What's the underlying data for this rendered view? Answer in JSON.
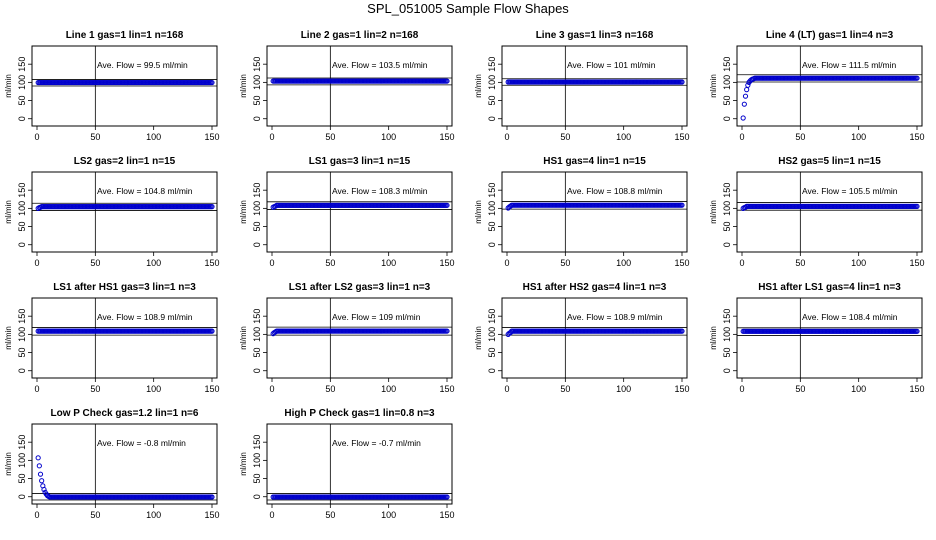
{
  "page": {
    "title": "SPL_051005  Sample Flow Shapes"
  },
  "chart_data": [
    {
      "type": "scatter",
      "title": "Line 1 gas=1 lin=1 n=168",
      "ylabel": "ml/min",
      "annotation": "Ave. Flow =  99.5  ml/min",
      "xlim": [
        0,
        150
      ],
      "ylim": [
        -20,
        200
      ],
      "xticks": [
        0,
        50,
        100,
        150
      ],
      "yticks": [
        0,
        50,
        100,
        150
      ],
      "hlines": [
        90,
        108
      ],
      "vline": 50,
      "marker_color": "#0000cc",
      "start": [],
      "plateau": 99.5
    },
    {
      "type": "scatter",
      "title": "Line 2 gas=1 lin=2 n=168",
      "ylabel": "ml/min",
      "annotation": "Ave. Flow =  103.5  ml/min",
      "xlim": [
        0,
        150
      ],
      "ylim": [
        -20,
        200
      ],
      "xticks": [
        0,
        50,
        100,
        150
      ],
      "yticks": [
        0,
        50,
        100,
        150
      ],
      "hlines": [
        93,
        112
      ],
      "vline": 50,
      "marker_color": "#0000cc",
      "start": [],
      "plateau": 103.5
    },
    {
      "type": "scatter",
      "title": "Line 3 gas=1 lin=3 n=168",
      "ylabel": "ml/min",
      "annotation": "Ave. Flow =  101  ml/min",
      "xlim": [
        0,
        150
      ],
      "ylim": [
        -20,
        200
      ],
      "xticks": [
        0,
        50,
        100,
        150
      ],
      "yticks": [
        0,
        50,
        100,
        150
      ],
      "hlines": [
        92,
        110
      ],
      "vline": 50,
      "marker_color": "#0000cc",
      "start": [],
      "plateau": 101
    },
    {
      "type": "scatter",
      "title": "Line 4 (LT) gas=1 lin=4 n=3",
      "ylabel": "ml/min",
      "annotation": "Ave. Flow =  111.5  ml/min",
      "xlim": [
        0,
        150
      ],
      "ylim": [
        -20,
        200
      ],
      "xticks": [
        0,
        50,
        100,
        150
      ],
      "yticks": [
        0,
        50,
        100,
        150
      ],
      "hlines": [
        101,
        121
      ],
      "vline": 50,
      "marker_color": "#0000cc",
      "start": [
        [
          1,
          2
        ],
        [
          2,
          40
        ],
        [
          3,
          62
        ],
        [
          4,
          80
        ],
        [
          5,
          92
        ],
        [
          6,
          100
        ],
        [
          7,
          104
        ],
        [
          8,
          107
        ],
        [
          9,
          109
        ],
        [
          10,
          110
        ]
      ],
      "plateau": 111.5
    },
    {
      "type": "scatter",
      "title": "LS2 gas=2 lin=1 n=15",
      "ylabel": "ml/min",
      "annotation": "Ave. Flow =  104.8  ml/min",
      "xlim": [
        0,
        150
      ],
      "ylim": [
        -20,
        200
      ],
      "xticks": [
        0,
        50,
        100,
        150
      ],
      "yticks": [
        0,
        50,
        100,
        150
      ],
      "hlines": [
        94,
        114
      ],
      "vline": 50,
      "marker_color": "#0000cc",
      "start": [
        [
          1,
          100
        ],
        [
          2,
          102
        ],
        [
          3,
          103
        ]
      ],
      "plateau": 104.8
    },
    {
      "type": "scatter",
      "title": "LS1 gas=3 lin=1 n=15",
      "ylabel": "ml/min",
      "annotation": "Ave. Flow =  108.3  ml/min",
      "xlim": [
        0,
        150
      ],
      "ylim": [
        -20,
        200
      ],
      "xticks": [
        0,
        50,
        100,
        150
      ],
      "yticks": [
        0,
        50,
        100,
        150
      ],
      "hlines": [
        97,
        118
      ],
      "vline": 50,
      "marker_color": "#0000cc",
      "start": [
        [
          1,
          103
        ],
        [
          2,
          105
        ],
        [
          3,
          106
        ]
      ],
      "plateau": 108.3
    },
    {
      "type": "scatter",
      "title": "HS1 gas=4 lin=1 n=15",
      "ylabel": "ml/min",
      "annotation": "Ave. Flow =  108.8  ml/min",
      "xlim": [
        0,
        150
      ],
      "ylim": [
        -20,
        200
      ],
      "xticks": [
        0,
        50,
        100,
        150
      ],
      "yticks": [
        0,
        50,
        100,
        150
      ],
      "hlines": [
        98,
        119
      ],
      "vline": 50,
      "marker_color": "#0000cc",
      "start": [
        [
          1,
          101
        ],
        [
          2,
          104
        ],
        [
          3,
          106
        ]
      ],
      "plateau": 108.8
    },
    {
      "type": "scatter",
      "title": "HS2 gas=5 lin=1 n=15",
      "ylabel": "ml/min",
      "annotation": "Ave. Flow =  105.5  ml/min",
      "xlim": [
        0,
        150
      ],
      "ylim": [
        -20,
        200
      ],
      "xticks": [
        0,
        50,
        100,
        150
      ],
      "yticks": [
        0,
        50,
        100,
        150
      ],
      "hlines": [
        95,
        116
      ],
      "vline": 50,
      "marker_color": "#0000cc",
      "start": [
        [
          1,
          100
        ],
        [
          2,
          102
        ],
        [
          3,
          103
        ]
      ],
      "plateau": 105.5
    },
    {
      "type": "scatter",
      "title": "LS1 after HS1 gas=3 lin=1 n=3",
      "ylabel": "ml/min",
      "annotation": "Ave. Flow =  108.9  ml/min",
      "xlim": [
        0,
        150
      ],
      "ylim": [
        -20,
        200
      ],
      "xticks": [
        0,
        50,
        100,
        150
      ],
      "yticks": [
        0,
        50,
        100,
        150
      ],
      "hlines": [
        98,
        119
      ],
      "vline": 50,
      "marker_color": "#0000cc",
      "start": [],
      "plateau": 108.9
    },
    {
      "type": "scatter",
      "title": "LS1 after LS2 gas=3 lin=1 n=3",
      "ylabel": "ml/min",
      "annotation": "Ave. Flow =  109  ml/min",
      "xlim": [
        0,
        150
      ],
      "ylim": [
        -20,
        200
      ],
      "xticks": [
        0,
        50,
        100,
        150
      ],
      "yticks": [
        0,
        50,
        100,
        150
      ],
      "hlines": [
        98,
        120
      ],
      "vline": 50,
      "marker_color": "#0000cc",
      "start": [
        [
          1,
          102
        ],
        [
          2,
          105
        ],
        [
          3,
          107
        ]
      ],
      "plateau": 109
    },
    {
      "type": "scatter",
      "title": "HS1 after HS2 gas=4 lin=1 n=3",
      "ylabel": "ml/min",
      "annotation": "Ave. Flow =  108.9  ml/min",
      "xlim": [
        0,
        150
      ],
      "ylim": [
        -20,
        200
      ],
      "xticks": [
        0,
        50,
        100,
        150
      ],
      "yticks": [
        0,
        50,
        100,
        150
      ],
      "hlines": [
        98,
        119
      ],
      "vline": 50,
      "marker_color": "#0000cc",
      "start": [
        [
          1,
          100
        ],
        [
          2,
          103
        ],
        [
          3,
          105
        ]
      ],
      "plateau": 108.9
    },
    {
      "type": "scatter",
      "title": "HS1 after LS1 gas=4 lin=1 n=3",
      "ylabel": "ml/min",
      "annotation": "Ave. Flow =  108.4  ml/min",
      "xlim": [
        0,
        150
      ],
      "ylim": [
        -20,
        200
      ],
      "xticks": [
        0,
        50,
        100,
        150
      ],
      "yticks": [
        0,
        50,
        100,
        150
      ],
      "hlines": [
        97,
        118
      ],
      "vline": 50,
      "marker_color": "#0000cc",
      "start": [],
      "plateau": 108.4
    },
    {
      "type": "scatter",
      "title": "Low P Check gas=1.2 lin=1 n=6",
      "ylabel": "ml/min",
      "annotation": "Ave. Flow =  -0.8  ml/min",
      "xlim": [
        0,
        150
      ],
      "ylim": [
        -20,
        200
      ],
      "xticks": [
        0,
        50,
        100,
        150
      ],
      "yticks": [
        0,
        50,
        100,
        150
      ],
      "hlines": [
        -9,
        9
      ],
      "vline": 50,
      "marker_color": "#0000cc",
      "start": [
        [
          1,
          107
        ],
        [
          2,
          85
        ],
        [
          3,
          62
        ],
        [
          4,
          44
        ],
        [
          5,
          30
        ],
        [
          6,
          20
        ],
        [
          7,
          12
        ],
        [
          8,
          7
        ],
        [
          9,
          3
        ],
        [
          10,
          1
        ]
      ],
      "plateau": -0.8
    },
    {
      "type": "scatter",
      "title": "High P Check gas=1 lin=0.8 n=3",
      "ylabel": "ml/min",
      "annotation": "Ave. Flow =  -0.7  ml/min",
      "xlim": [
        0,
        150
      ],
      "ylim": [
        -20,
        200
      ],
      "xticks": [
        0,
        50,
        100,
        150
      ],
      "yticks": [
        0,
        50,
        100,
        150
      ],
      "hlines": [
        -9,
        9
      ],
      "vline": 50,
      "marker_color": "#0000cc",
      "start": [],
      "plateau": -0.7
    }
  ]
}
